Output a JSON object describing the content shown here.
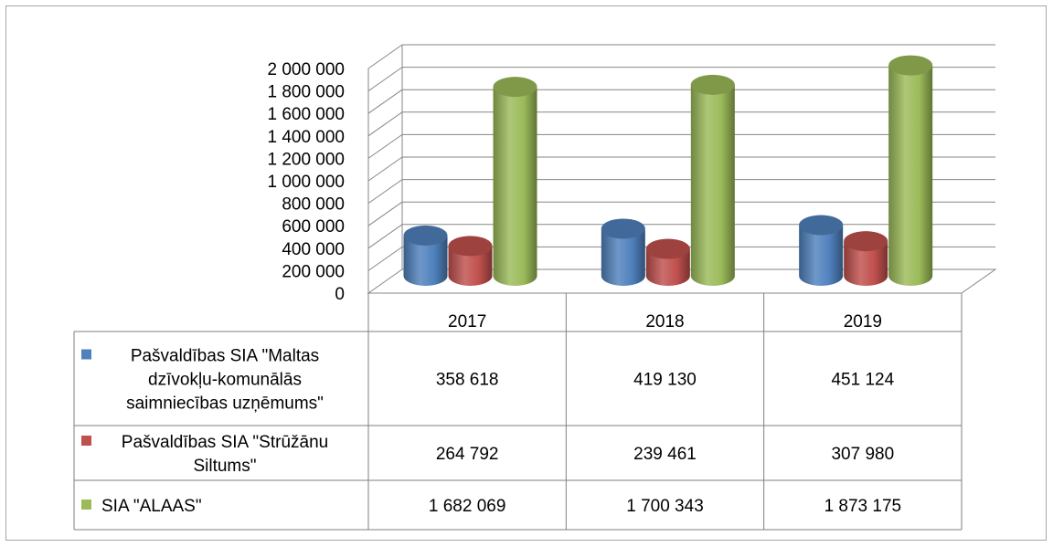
{
  "chart_data": {
    "type": "bar",
    "title": "",
    "categories": [
      "2017",
      "2018",
      "2019"
    ],
    "series": [
      {
        "name": "Pašvaldības SIA \"Maltas dzīvokļu-komunālās saimniecības uzņēmums\"",
        "label_lines": [
          "Pašvaldības SIA \"Maltas",
          "dzīvokļu-komunālās",
          "saimniecības uzņēmums\""
        ],
        "color": "#4f81bd",
        "values": [
          358618,
          419130,
          451124
        ],
        "display": [
          "358 618",
          "419 130",
          "451 124"
        ]
      },
      {
        "name": "Pašvaldības SIA \"Strūžānu Siltums\"",
        "label_lines": [
          "Pašvaldības SIA \"Strūžānu",
          "Siltums\""
        ],
        "color": "#c0504d",
        "values": [
          264792,
          239461,
          307980
        ],
        "display": [
          "264 792",
          "239 461",
          "307 980"
        ]
      },
      {
        "name": "SIA \"ALAAS\"",
        "label_lines": [
          "SIA \"ALAAS\""
        ],
        "color": "#9bbb59",
        "values": [
          1682069,
          1700343,
          1873175
        ],
        "display": [
          "1 682 069",
          "1 700 343",
          "1 873 175"
        ]
      }
    ],
    "ylim": [
      0,
      2000000
    ],
    "yticks": [
      0,
      200000,
      400000,
      600000,
      800000,
      1000000,
      1200000,
      1400000,
      1600000,
      1800000,
      2000000
    ],
    "ytick_labels": [
      "0",
      "200 000",
      "400 000",
      "600 000",
      "800 000",
      "1 000 000",
      "1 200 000",
      "1 400 000",
      "1 600 000",
      "1 800 000",
      "2 000 000"
    ],
    "grid": true,
    "style": "3d-cylinder",
    "legend": "data-table"
  }
}
